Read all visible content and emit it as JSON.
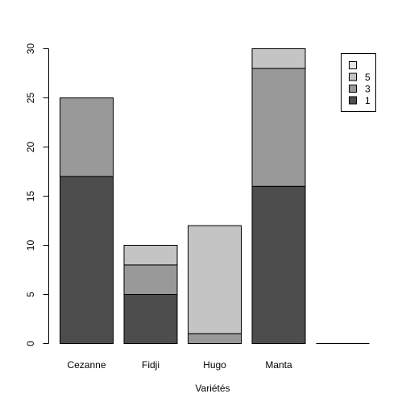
{
  "chart_data": {
    "type": "bar",
    "stacked": true,
    "title": "",
    "xlabel": "Variétés",
    "ylabel": "",
    "ylim": [
      0,
      30
    ],
    "yticks": [
      "0",
      "5",
      "10",
      "15",
      "20",
      "25",
      "30"
    ],
    "categories": [
      "Cezanne",
      "Fidji",
      "Hugo",
      "Manta",
      ""
    ],
    "series": [
      {
        "name": "1",
        "color": "#4d4d4d",
        "values": [
          17,
          5,
          0,
          16,
          0
        ]
      },
      {
        "name": "3",
        "color": "#999999",
        "values": [
          8,
          3,
          1,
          12,
          0
        ]
      },
      {
        "name": "5",
        "color": "#c4c4c4",
        "values": [
          0,
          2,
          11,
          2,
          0
        ]
      }
    ],
    "legend": {
      "placement": "top-right",
      "entries": [
        {
          "label": "",
          "color": "#e6e6e6"
        },
        {
          "label": "5",
          "color": "#c4c4c4"
        },
        {
          "label": "3",
          "color": "#999999"
        },
        {
          "label": "1",
          "color": "#4d4d4d"
        }
      ]
    },
    "grid": false
  }
}
